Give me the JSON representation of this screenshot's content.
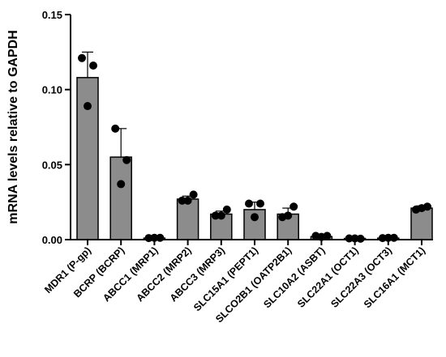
{
  "chart_data": {
    "type": "bar",
    "title": "",
    "xlabel": "",
    "ylabel": "mRNA levels relative to GAPDH",
    "ylim": [
      0,
      0.15
    ],
    "yticks": [
      0.0,
      0.05,
      0.1,
      0.15
    ],
    "ytick_labels": [
      "0.00",
      "0.05",
      "0.10",
      "0.15"
    ],
    "grid": false,
    "categories": [
      "MDR1 (P-gp)",
      "BCRP (BCRP)",
      "ABCC1 (MRP1)",
      "ABCC2 (MRP2)",
      "ABCC3 (MRP3)",
      "SLC15A1 (PEPT1)",
      "SLCO2B1 (OATP2B1)",
      "SLC10A2 (ASBT)",
      "SLC22A1 (OCT1)",
      "SLC22A3 (OCT3)",
      "SLC16A1 (MCT1)"
    ],
    "values": [
      0.108,
      0.055,
      0.001,
      0.027,
      0.017,
      0.02,
      0.017,
      0.002,
      0.0008,
      0.001,
      0.021
    ],
    "errors": [
      0.017,
      0.019,
      0.0004,
      0.002,
      0.002,
      0.005,
      0.004,
      0.0005,
      0.0004,
      0.0005,
      0.0015
    ],
    "points": [
      [
        0.121,
        0.116,
        0.089
      ],
      [
        0.074,
        0.053,
        0.037
      ],
      [
        0.001,
        0.0012,
        0.0012
      ],
      [
        0.026,
        0.03,
        0.026
      ],
      [
        0.016,
        0.02,
        0.016
      ],
      [
        0.024,
        0.024,
        0.015
      ],
      [
        0.015,
        0.022,
        0.016
      ],
      [
        0.0025,
        0.0025,
        0.0018
      ],
      [
        0.0008,
        0.0006,
        0.0008
      ],
      [
        0.001,
        0.0012,
        0.0012
      ],
      [
        0.02,
        0.022,
        0.021
      ]
    ],
    "colors": {
      "bar": "#8c8c8c",
      "outline": "#000000",
      "point": "#000000"
    }
  }
}
